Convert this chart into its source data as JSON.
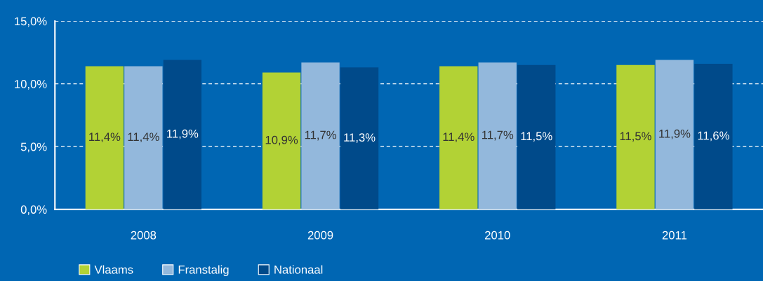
{
  "chart_data": {
    "type": "bar",
    "categories": [
      "2008",
      "2009",
      "2010",
      "2011"
    ],
    "series": [
      {
        "name": "Vlaams",
        "color": "#b2d235",
        "values": [
          11.4,
          10.9,
          11.4,
          11.5
        ],
        "value_labels": [
          "11,4%",
          "10,9%",
          "11,4%",
          "11,5%"
        ]
      },
      {
        "name": "Franstalig",
        "color": "#93b8dc",
        "values": [
          11.4,
          11.7,
          11.7,
          11.9
        ],
        "value_labels": [
          "11,4%",
          "11,7%",
          "11,7%",
          "11,9%"
        ]
      },
      {
        "name": "Nationaal",
        "color": "#004a8a",
        "values": [
          11.9,
          11.3,
          11.5,
          11.6
        ],
        "value_labels": [
          "11,9%",
          "11,3%",
          "11,5%",
          "11,6%"
        ]
      }
    ],
    "ylim": [
      0,
      15
    ],
    "yticks": [
      {
        "value": 0,
        "label": "0,0%"
      },
      {
        "value": 5,
        "label": "5,0%"
      },
      {
        "value": 10,
        "label": "10,0%"
      },
      {
        "value": 15,
        "label": "15,0%"
      }
    ],
    "grid": "y",
    "legend": "bottom left"
  }
}
